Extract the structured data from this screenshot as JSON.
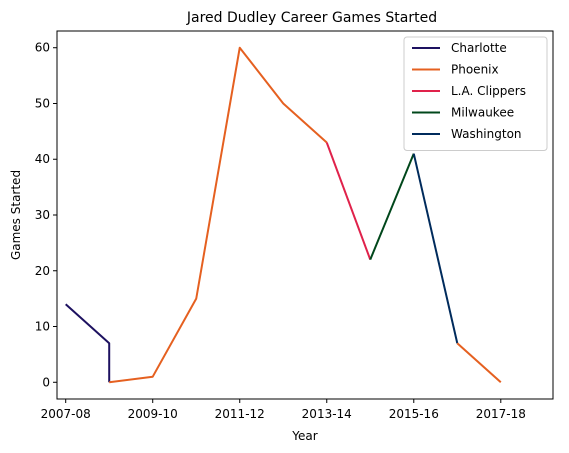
{
  "chart_data": {
    "type": "line",
    "title": "Jared Dudley Career Games Started",
    "xlabel": "Year",
    "ylabel": "Games Started",
    "xlim": [
      2006.8,
      2018.2
    ],
    "ylim": [
      -3,
      63
    ],
    "x_ticks": [
      {
        "value": 2007,
        "label": "2007-08"
      },
      {
        "value": 2009,
        "label": "2009-10"
      },
      {
        "value": 2011,
        "label": "2011-12"
      },
      {
        "value": 2013,
        "label": "2013-14"
      },
      {
        "value": 2015,
        "label": "2015-16"
      },
      {
        "value": 2017,
        "label": "2017-18"
      }
    ],
    "y_ticks": [
      0,
      10,
      20,
      30,
      40,
      50,
      60
    ],
    "grid": false,
    "legend_position": "top-right",
    "series": [
      {
        "name": "Charlotte",
        "color": "#1d1160",
        "x": [
          2007,
          2008,
          2008
        ],
        "y": [
          14,
          7,
          0
        ]
      },
      {
        "name": "Phoenix",
        "color": "#e56020",
        "x": [
          2008,
          2009,
          2010,
          2011,
          2012,
          2013
        ],
        "y": [
          0,
          1,
          15,
          60,
          50,
          43
        ]
      },
      {
        "name": "L.A. Clippers",
        "color": "#e0224b",
        "x": [
          2013,
          2014
        ],
        "y": [
          43,
          22
        ]
      },
      {
        "name": "Milwaukee",
        "color": "#00471b",
        "x": [
          2014,
          2015
        ],
        "y": [
          22,
          41
        ]
      },
      {
        "name": "Washington",
        "color": "#002b5c",
        "x": [
          2015,
          2016
        ],
        "y": [
          41,
          7
        ]
      },
      {
        "name": "Phoenix",
        "color": "#e56020",
        "x": [
          2016,
          2017
        ],
        "y": [
          7,
          0
        ],
        "in_legend": false
      }
    ],
    "legend": [
      {
        "name": "Charlotte",
        "color": "#1d1160"
      },
      {
        "name": "Phoenix",
        "color": "#e56020"
      },
      {
        "name": "L.A. Clippers",
        "color": "#e0224b"
      },
      {
        "name": "Milwaukee",
        "color": "#00471b"
      },
      {
        "name": "Washington",
        "color": "#002b5c"
      }
    ]
  }
}
